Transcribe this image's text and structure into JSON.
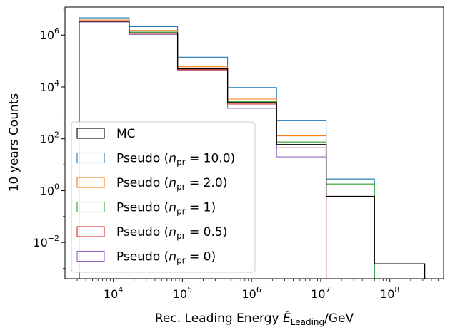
{
  "chart_data": {
    "type": "step",
    "xlabel_prefix": "Rec. Leading Energy ",
    "xlabel_symbol": "Ê",
    "xlabel_sub": "Leading",
    "xlabel_unit": "/GeV",
    "ylabel": "10 years Counts",
    "x_scale": "log",
    "y_scale": "log",
    "xlim": [
      2000,
      600000000
    ],
    "ylim": [
      0.0004,
      12000000.0
    ],
    "grid": false,
    "legend_position": "lower-left",
    "bin_edges": [
      3200,
      17000,
      85000,
      450000,
      2300000,
      12000000,
      60000000,
      320000000
    ],
    "x_ticks": [
      {
        "value": 10000,
        "base": "10",
        "exp": "4"
      },
      {
        "value": 100000,
        "base": "10",
        "exp": "5"
      },
      {
        "value": 1000000,
        "base": "10",
        "exp": "6"
      },
      {
        "value": 10000000,
        "base": "10",
        "exp": "7"
      },
      {
        "value": 100000000,
        "base": "10",
        "exp": "8"
      }
    ],
    "y_ticks": [
      {
        "value": 0.01,
        "base": "10",
        "exp": "−2"
      },
      {
        "value": 1,
        "base": "10",
        "exp": "0"
      },
      {
        "value": 100,
        "base": "10",
        "exp": "2"
      },
      {
        "value": 10000,
        "base": "10",
        "exp": "4"
      },
      {
        "value": 1000000,
        "base": "10",
        "exp": "6"
      }
    ],
    "series": [
      {
        "label": "MC",
        "color": "#000000",
        "values": [
          3400000,
          1200000,
          50000,
          2500,
          60,
          0.6,
          0.0015
        ]
      },
      {
        "label": "Pseudo (",
        "n_value": "10.0",
        "color": "#1f77b4",
        "values": [
          4600000,
          2100000,
          140000,
          9500,
          500,
          2.8,
          0
        ]
      },
      {
        "label": "Pseudo (",
        "n_value": "2.0",
        "color": "#ff7f0e",
        "values": [
          3800000,
          1500000,
          60000,
          3400,
          130,
          0,
          0
        ]
      },
      {
        "label": "Pseudo (",
        "n_value": "1",
        "color": "#2ca02c",
        "values": [
          3500000,
          1300000,
          52000,
          2700,
          75,
          1.8,
          0
        ]
      },
      {
        "label": "Pseudo (",
        "n_value": "0.5",
        "color": "#d62728",
        "values": [
          3300000,
          1150000,
          46000,
          2200,
          45,
          0,
          0
        ]
      },
      {
        "label": "Pseudo (",
        "n_value": "0",
        "color": "#9467bd",
        "values": [
          3200000,
          1050000,
          42000,
          1500,
          20,
          0,
          0
        ]
      }
    ]
  }
}
